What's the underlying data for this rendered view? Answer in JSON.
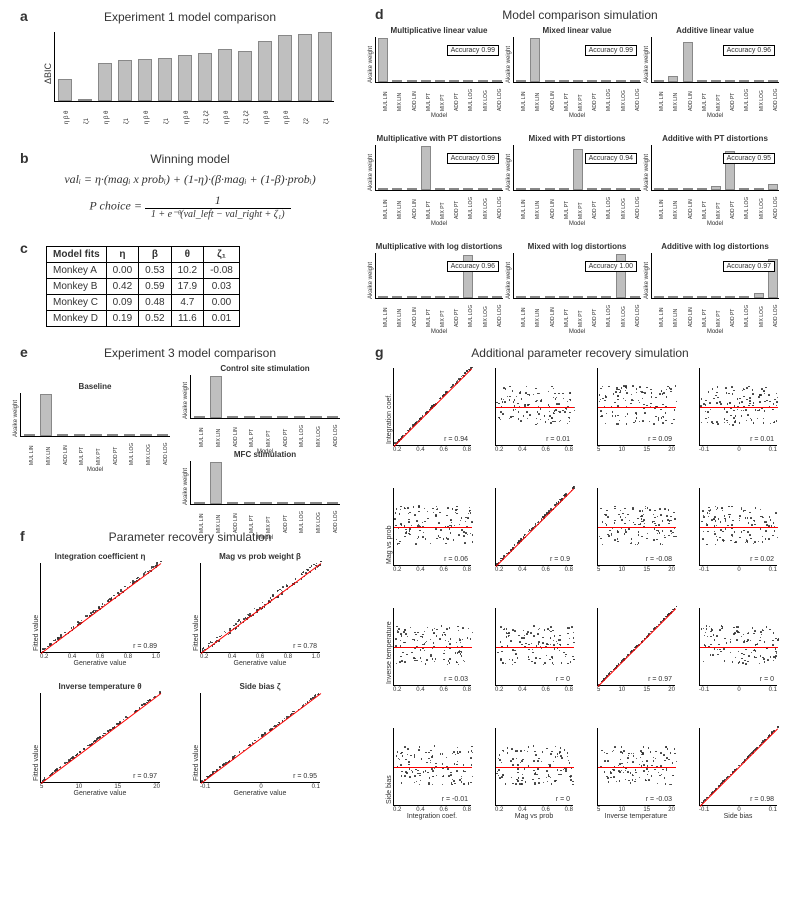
{
  "a": {
    "label": "a",
    "title": "Experiment 1 model comparison",
    "ylabel": "ΔBIC",
    "ylim": [
      0,
      50
    ],
    "bars": [
      16,
      0,
      27,
      29,
      30,
      31,
      33,
      34,
      37,
      36,
      43,
      47,
      48,
      49
    ],
    "categories": [
      "η β θ",
      "ζ1",
      "η β θ",
      "ζ1",
      "η β θ",
      "ζ1",
      "η β θ",
      "ζ1 ζ2",
      "η β θ",
      "ζ1 ζ2",
      "η β θ",
      "η β θ",
      "ζ2",
      "ζ1"
    ],
    "bar_color": "#bfbfbf"
  },
  "b": {
    "label": "b",
    "title": "Winning model",
    "eq1_text": "valᵢ = η·(magᵢ x probᵢ) + (1-η)·(β·magᵢ + (1-β)·probᵢ)",
    "eq2_lhs": "P choice =",
    "eq2_num": "1",
    "eq2_den": "1 + e⁻ᶿ(val_left − val_right + ζ₁)"
  },
  "c": {
    "label": "c",
    "columns": [
      "Model fits",
      "η",
      "β",
      "θ",
      "ζ₁"
    ],
    "rows": [
      [
        "Monkey A",
        "0.00",
        "0.53",
        "10.2",
        "-0.08"
      ],
      [
        "Monkey B",
        "0.42",
        "0.59",
        "17.9",
        "0.03"
      ],
      [
        "Monkey C",
        "0.09",
        "0.48",
        "4.7",
        "0.00"
      ],
      [
        "Monkey D",
        "0.19",
        "0.52",
        "11.6",
        "0.01"
      ]
    ]
  },
  "d": {
    "label": "d",
    "title": "Model comparison simulation",
    "models": [
      "MUL LIN",
      "MIX LIN",
      "ADD LIN",
      "MUL PT",
      "MIX PT",
      "ADD PT",
      "MUL LOG",
      "MIX LOG",
      "ADD LOG"
    ],
    "ylabel": "Akaike weight",
    "xlabel": "Model",
    "panels": [
      {
        "title": "Multiplicative linear value",
        "winner_idx": 0,
        "accuracy": "0.99",
        "heights": [
          0.96,
          0.02,
          0.01,
          0.01,
          0,
          0,
          0,
          0,
          0
        ]
      },
      {
        "title": "Mixed linear value",
        "winner_idx": 1,
        "accuracy": "0.99",
        "heights": [
          0.02,
          0.95,
          0.01,
          0.01,
          0.01,
          0,
          0,
          0,
          0
        ]
      },
      {
        "title": "Additive linear value",
        "winner_idx": 2,
        "accuracy": "0.96",
        "heights": [
          0.01,
          0.12,
          0.88,
          0.01,
          0.01,
          0.03,
          0,
          0,
          0
        ]
      },
      {
        "title": "Multiplicative with PT distortions",
        "winner_idx": 3,
        "accuracy": "0.99",
        "heights": [
          0.01,
          0,
          0,
          0.96,
          0.02,
          0.01,
          0,
          0,
          0
        ]
      },
      {
        "title": "Mixed with PT distortions",
        "winner_idx": 4,
        "accuracy": "0.94",
        "heights": [
          0,
          0.01,
          0,
          0.03,
          0.9,
          0.02,
          0.01,
          0.02,
          0.01
        ]
      },
      {
        "title": "Additive with PT distortions",
        "winner_idx": 5,
        "accuracy": "0.95",
        "heights": [
          0,
          0,
          0.02,
          0.01,
          0.08,
          0.85,
          0,
          0.01,
          0.12
        ]
      },
      {
        "title": "Multiplicative with log distortions",
        "winner_idx": 6,
        "accuracy": "0.96",
        "heights": [
          0.01,
          0,
          0,
          0.01,
          0,
          0,
          0.94,
          0.03,
          0.01
        ]
      },
      {
        "title": "Mixed with log distortions",
        "winner_idx": 7,
        "accuracy": "1.00",
        "heights": [
          0,
          0,
          0,
          0,
          0.01,
          0,
          0.02,
          0.95,
          0.02
        ]
      },
      {
        "title": "Additive with log distortions",
        "winner_idx": 8,
        "accuracy": "0.97",
        "heights": [
          0,
          0,
          0.01,
          0,
          0,
          0.03,
          0.01,
          0.1,
          0.85
        ]
      }
    ]
  },
  "e": {
    "label": "e",
    "title": "Experiment 3 model comparison",
    "models": [
      "MUL LIN",
      "MIX LIN",
      "ADD LIN",
      "MUL PT",
      "MIX PT",
      "ADD PT",
      "MUL LOG",
      "MIX LOG",
      "ADD LOG"
    ],
    "ylabel": "Akaike weight",
    "xlabel": "Model",
    "panels": [
      {
        "title": "Baseline",
        "heights": [
          0.02,
          0.95,
          0.01,
          0,
          0.02,
          0,
          0,
          0,
          0
        ]
      },
      {
        "title": "Control site stimulation",
        "heights": [
          0.01,
          0.96,
          0.01,
          0,
          0.02,
          0,
          0,
          0,
          0
        ]
      },
      {
        "title": "MFC stimulation",
        "heights": [
          0.01,
          0.95,
          0.02,
          0,
          0.02,
          0,
          0,
          0,
          0
        ]
      }
    ]
  },
  "f": {
    "label": "f",
    "title": "Parameter recovery simulation",
    "xlabel": "Generative value",
    "ylabel": "Fitted value",
    "panels": [
      {
        "title": "Integration coefficient η",
        "r": "0.89",
        "xlim": [
          0,
          1
        ],
        "xticks": [
          "0.2",
          "0.4",
          "0.6",
          "0.8",
          "1.0"
        ]
      },
      {
        "title": "Mag vs prob weight β",
        "r": "0.78",
        "xlim": [
          0,
          1
        ],
        "xticks": [
          "0.2",
          "0.4",
          "0.6",
          "0.8",
          "1.0"
        ]
      },
      {
        "title": "Inverse temperature θ",
        "r": "0.97",
        "xlim": [
          0,
          20
        ],
        "xticks": [
          "5",
          "10",
          "15",
          "20"
        ]
      },
      {
        "title": "Side bias ζ",
        "r": "0.95",
        "xlim": [
          -0.1,
          0.1
        ],
        "xticks": [
          "-0.1",
          "0",
          "0.1"
        ]
      }
    ],
    "seeds": [
      1,
      2,
      3,
      4
    ]
  },
  "g": {
    "label": "g",
    "title": "Additional parameter recovery simulation",
    "cols": [
      "Integration coef.",
      "Mag vs prob",
      "Inverse temperature",
      "Side bias"
    ],
    "col_ticks": [
      [
        "0.2",
        "0.4",
        "0.6",
        "0.8"
      ],
      [
        "0.2",
        "0.4",
        "0.6",
        "0.8"
      ],
      [
        "5",
        "10",
        "15",
        "20"
      ],
      [
        "-0.1",
        "0",
        "0.1"
      ]
    ],
    "rows_ylabel": [
      "Integration coef.",
      "Mag vs prob",
      "Inverse temperature",
      "Side bias"
    ],
    "r": [
      [
        "0.94",
        "0.01",
        "0.09",
        "0.01"
      ],
      [
        "0.06",
        "0.9",
        "-0.08",
        "0.02"
      ],
      [
        "0.03",
        "0",
        "0.97",
        "0"
      ],
      [
        "-0.01",
        "0",
        "-0.03",
        "0.98"
      ]
    ],
    "seeds": [
      11,
      12,
      13,
      14,
      21,
      22,
      23,
      24,
      31,
      32,
      33,
      34,
      41,
      42,
      43,
      44
    ]
  },
  "colors": {
    "bar": "#bfbfbf",
    "diag": "#ff0000",
    "point": "#333333",
    "axis": "#000000"
  }
}
